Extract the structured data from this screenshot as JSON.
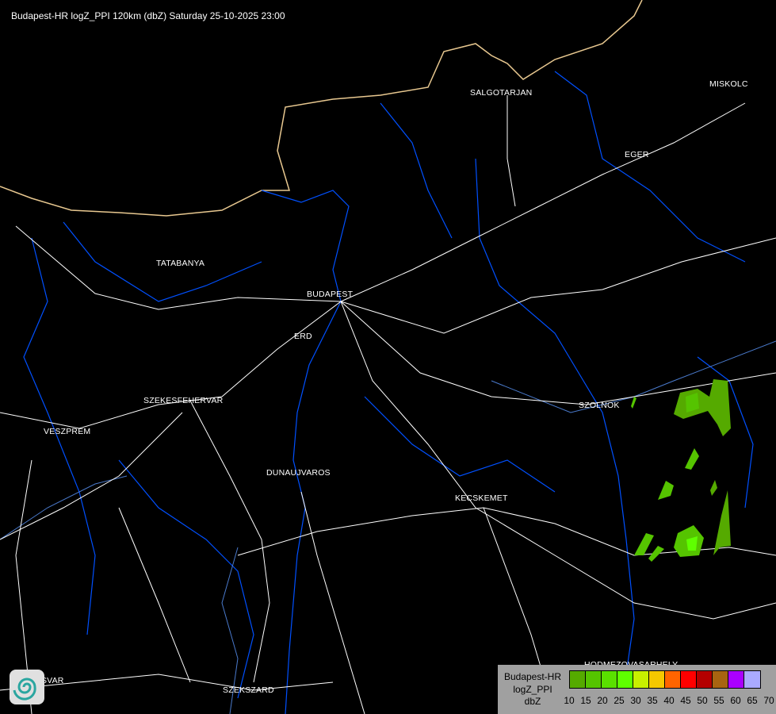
{
  "title": "Budapest-HR logZ_PPI 120km (dbZ) Saturday 25-10-2025 23:00",
  "cities": [
    {
      "name": "SALGOTARJAN"
    },
    {
      "name": "MISKOLC"
    },
    {
      "name": "EGER"
    },
    {
      "name": "TATABANYA"
    },
    {
      "name": "BUDAPEST"
    },
    {
      "name": "ERD"
    },
    {
      "name": "SZEKESFEHERVAR"
    },
    {
      "name": "VESZPREM"
    },
    {
      "name": "DUNAUJVAROS"
    },
    {
      "name": "SZOLNOK"
    },
    {
      "name": "KECSKEMET"
    },
    {
      "name": "HODMEZOVASARHELY"
    },
    {
      "name": "SZEKSZARD"
    },
    {
      "name": "KAPOSVAR"
    }
  ],
  "legend": {
    "line1": "Budapest-HR",
    "line2": "logZ_PPI",
    "line3": "dbZ",
    "colors": [
      "#55aa00",
      "#55c400",
      "#5ae000",
      "#5fff00",
      "#c8f000",
      "#f5c800",
      "#ff6400",
      "#ff0000",
      "#b40000",
      "#a86410",
      "#aa00ff",
      "#aaaaff"
    ],
    "ticks": [
      "10",
      "15",
      "20",
      "25",
      "30",
      "35",
      "40",
      "45",
      "50",
      "55",
      "60",
      "65",
      "70"
    ]
  },
  "colors": {
    "roads": "#ffffff",
    "rivers": "#0050ff",
    "border": "#e8c890",
    "echo_low": "#55aa00",
    "echo_mid": "#55c400"
  },
  "logo_icon": "spiral-logo-icon"
}
